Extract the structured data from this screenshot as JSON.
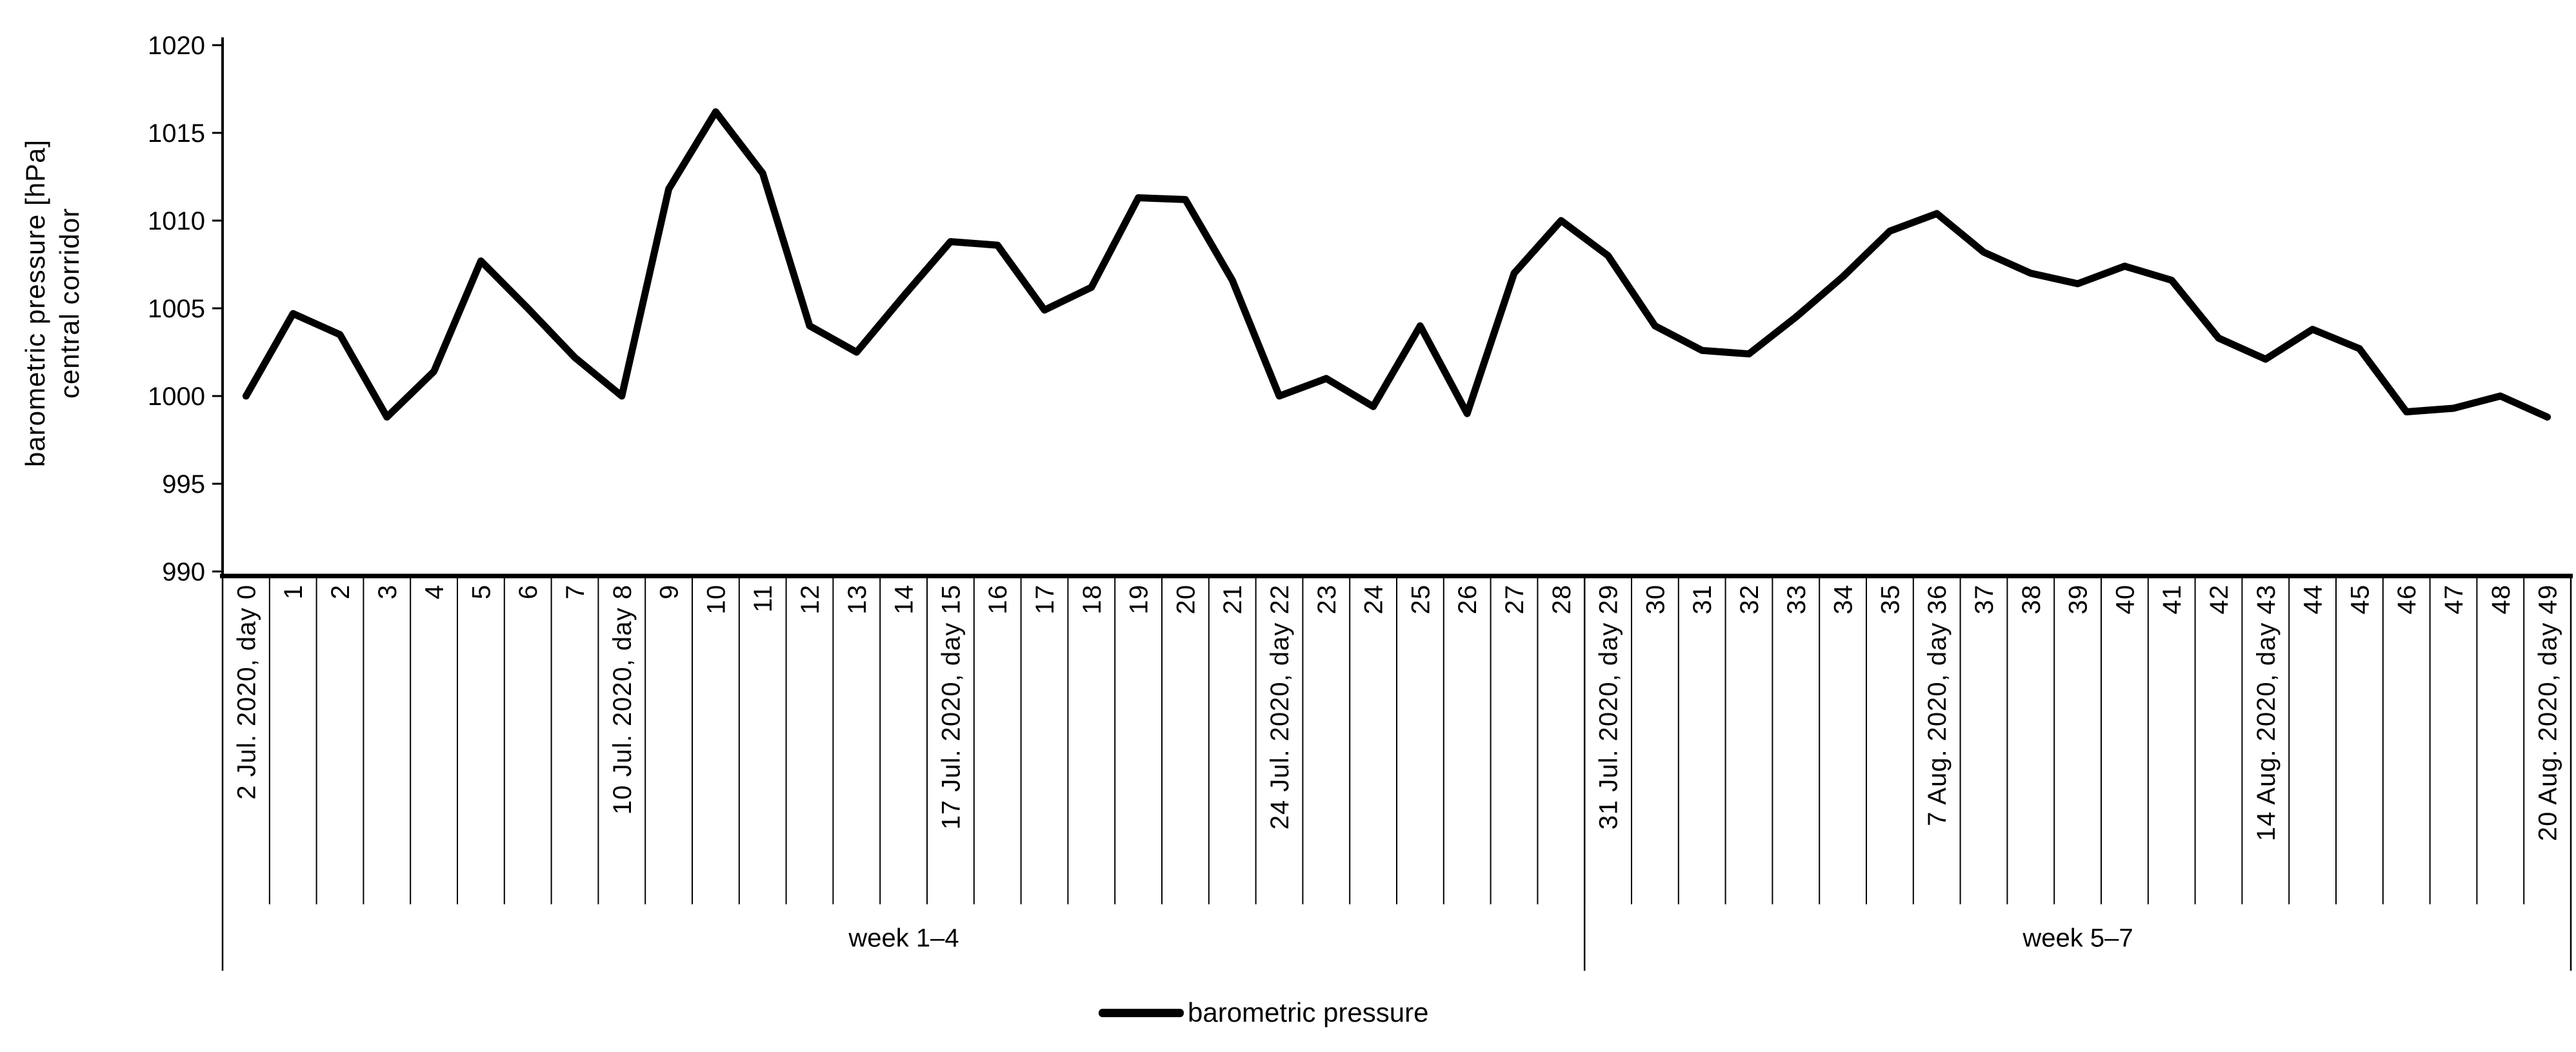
{
  "chart_data": {
    "type": "line",
    "title": "",
    "xlabel": "",
    "ylabel_line1": "barometric pressure [hPa]",
    "ylabel_line2": "central corridor",
    "ylim": [
      990,
      1020
    ],
    "y_ticks": [
      "1020",
      "1015",
      "1010",
      "1005",
      "1000",
      "995",
      "990"
    ],
    "y_tick_values": [
      1020,
      1015,
      1010,
      1005,
      1000,
      995,
      990
    ],
    "grid": "off",
    "legend_position": "bottom-center",
    "line_color": "#000000",
    "background_color": "#ffffff",
    "x_labels": [
      "2 Jul. 2020, day 0",
      "1",
      "2",
      "3",
      "4",
      "5",
      "6",
      "7",
      "10 Jul. 2020, day 8",
      "9",
      "10",
      "11",
      "12",
      "13",
      "14",
      "17 Jul. 2020, day 15",
      "16",
      "17",
      "18",
      "19",
      "20",
      "21",
      "24 Jul. 2020, day 22",
      "23",
      "24",
      "25",
      "26",
      "27",
      "28",
      "31 Jul. 2020, day 29",
      "30",
      "31",
      "32",
      "33",
      "34",
      "35",
      "7 Aug. 2020, day 36",
      "37",
      "38",
      "39",
      "40",
      "41",
      "42",
      "14 Aug. 2020, day 43",
      "44",
      "45",
      "46",
      "47",
      "48",
      "20 Aug. 2020, day 49"
    ],
    "series": [
      {
        "name": "barometric pressure",
        "values": [
          1000.0,
          1004.7,
          1003.5,
          998.8,
          1001.4,
          1007.7,
          1005.0,
          1002.2,
          1000.0,
          1011.8,
          1016.2,
          1012.7,
          1004.0,
          1002.5,
          1005.7,
          1008.8,
          1008.6,
          1004.9,
          1006.2,
          1011.3,
          1011.2,
          1006.6,
          1000.0,
          1001.0,
          999.4,
          1004.0,
          999.0,
          1007.0,
          1010.0,
          1008.0,
          1004.0,
          1002.6,
          1002.4,
          1004.5,
          1006.8,
          1009.4,
          1010.4,
          1008.2,
          1007.0,
          1006.4,
          1007.4,
          1006.6,
          1003.3,
          1002.1,
          1003.8,
          1002.7,
          999.1,
          999.3,
          1000.0,
          998.8
        ]
      }
    ],
    "x_groups": [
      {
        "label": "week 1–4",
        "start_index": 0,
        "end_index": 28
      },
      {
        "label": "week 5–7",
        "start_index": 29,
        "end_index": 49
      }
    ],
    "legend": {
      "label": "barometric pressure"
    }
  }
}
